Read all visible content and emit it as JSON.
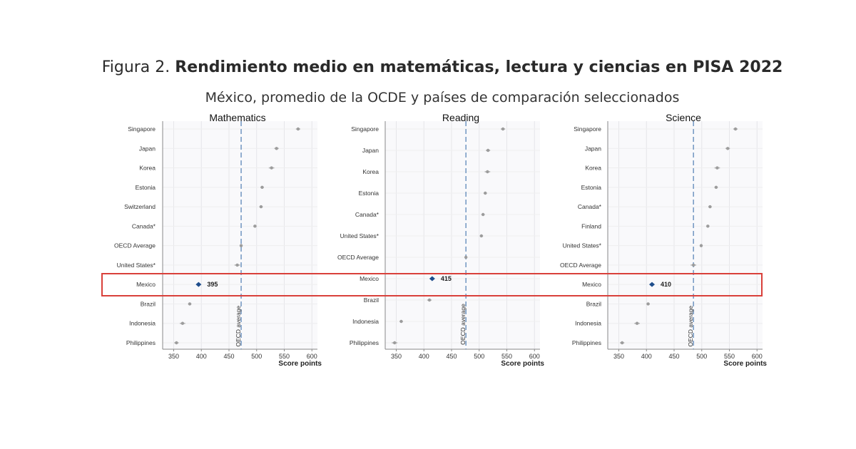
{
  "figure": {
    "title_prefix": "Figura 2.",
    "title_bold": "Rendimiento medio en matemáticas, lectura y ciencias en PISA 2022",
    "subtitle": "México, promedio de la OCDE y países de comparación seleccionados"
  },
  "chart_data": [
    {
      "type": "scatter",
      "title": "Mathematics",
      "xlabel": "Score points",
      "ylabel": "",
      "xlim": [
        330,
        610
      ],
      "xticks": [
        350,
        400,
        450,
        500,
        550,
        600
      ],
      "grid": true,
      "reference_line": {
        "label": "OECD average",
        "x": 472
      },
      "highlight": {
        "category": "Mexico",
        "value_label": "395"
      },
      "categories": [
        "Singapore",
        "Japan",
        "Korea",
        "Estonia",
        "Switzerland",
        "Canada*",
        "OECD Average",
        "United States*",
        "Mexico",
        "Brazil",
        "Indonesia",
        "Philippines"
      ],
      "values": [
        575,
        536,
        527,
        510,
        508,
        497,
        472,
        465,
        395,
        379,
        366,
        355
      ]
    },
    {
      "type": "scatter",
      "title": "Reading",
      "xlabel": "Score points",
      "ylabel": "",
      "xlim": [
        330,
        610
      ],
      "xticks": [
        350,
        400,
        450,
        500,
        550,
        600
      ],
      "grid": true,
      "reference_line": {
        "label": "OECD average",
        "x": 476
      },
      "highlight": {
        "category": "Mexico",
        "value_label": "415"
      },
      "categories": [
        "Singapore",
        "Japan",
        "Korea",
        "Estonia",
        "Canada*",
        "United States*",
        "OECD Average",
        "Mexico",
        "Brazil",
        "Indonesia",
        "Philippines"
      ],
      "values": [
        543,
        516,
        515,
        511,
        507,
        504,
        476,
        415,
        410,
        359,
        347
      ]
    },
    {
      "type": "scatter",
      "title": "Science",
      "xlabel": "Score points",
      "ylabel": "",
      "xlim": [
        330,
        610
      ],
      "xticks": [
        350,
        400,
        450,
        500,
        550,
        600
      ],
      "grid": true,
      "reference_line": {
        "label": "OECD average",
        "x": 485
      },
      "highlight": {
        "category": "Mexico",
        "value_label": "410"
      },
      "categories": [
        "Singapore",
        "Japan",
        "Korea",
        "Estonia",
        "Canada*",
        "Finland",
        "United States*",
        "OECD Average",
        "Mexico",
        "Brazil",
        "Indonesia",
        "Philippines"
      ],
      "values": [
        561,
        547,
        528,
        526,
        515,
        511,
        499,
        485,
        410,
        403,
        383,
        356
      ]
    }
  ],
  "colors": {
    "highlight_box": "#d9403a",
    "highlight_point": "#1f4e8c",
    "point": "#9c9c9c",
    "reference_line": "#5b86b8"
  }
}
